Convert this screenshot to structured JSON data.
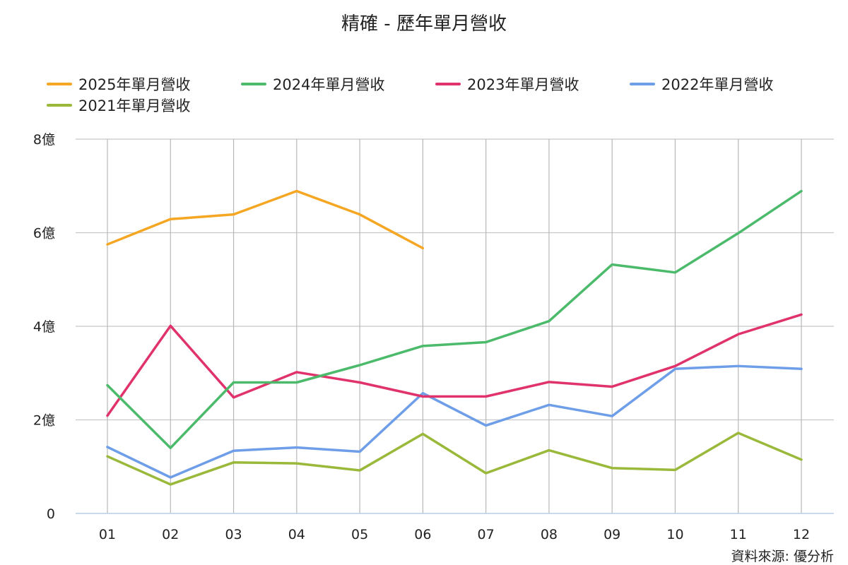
{
  "chart_data": {
    "type": "line",
    "title": "精確 - 歷年單月營收",
    "source": "資料來源: 優分析",
    "categories": [
      "01",
      "02",
      "03",
      "04",
      "05",
      "06",
      "07",
      "08",
      "09",
      "10",
      "11",
      "12"
    ],
    "y_ticks": [
      {
        "value": 0,
        "label": "0"
      },
      {
        "value": 2,
        "label": "2億"
      },
      {
        "value": 4,
        "label": "4億"
      },
      {
        "value": 6,
        "label": "6億"
      },
      {
        "value": 8,
        "label": "8億"
      }
    ],
    "ylim": [
      0,
      8
    ],
    "grid": true,
    "legend_position": "top",
    "series": [
      {
        "name": "2025年單月營收",
        "color": "#f5a623",
        "values": [
          5.75,
          6.29,
          6.39,
          6.89,
          6.39,
          5.67,
          null,
          null,
          null,
          null,
          null,
          null
        ]
      },
      {
        "name": "2024年單月營收",
        "color": "#4cba6b",
        "values": [
          2.74,
          1.4,
          2.8,
          2.8,
          3.17,
          3.58,
          3.66,
          4.11,
          5.32,
          5.15,
          5.99,
          6.89
        ]
      },
      {
        "name": "2023年單月營收",
        "color": "#e0336b",
        "values": [
          2.09,
          4.01,
          2.48,
          3.02,
          2.8,
          2.5,
          2.5,
          2.81,
          2.71,
          3.15,
          3.83,
          4.25
        ]
      },
      {
        "name": "2022年單月營收",
        "color": "#6e9ee8",
        "values": [
          1.42,
          0.77,
          1.34,
          1.41,
          1.32,
          2.57,
          1.88,
          2.32,
          2.08,
          3.09,
          3.15,
          3.09
        ]
      },
      {
        "name": "2021年單月營收",
        "color": "#9ab83a",
        "values": [
          1.22,
          0.62,
          1.09,
          1.07,
          0.92,
          1.7,
          0.86,
          1.35,
          0.97,
          0.93,
          1.72,
          1.15
        ]
      }
    ]
  }
}
